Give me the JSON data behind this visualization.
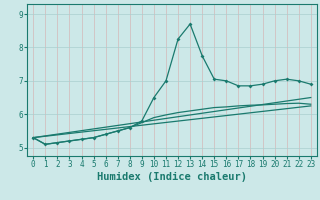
{
  "title": "",
  "xlabel": "Humidex (Indice chaleur)",
  "x": [
    0,
    1,
    2,
    3,
    4,
    5,
    6,
    7,
    8,
    9,
    10,
    11,
    12,
    13,
    14,
    15,
    16,
    17,
    18,
    19,
    20,
    21,
    22,
    23
  ],
  "line1": [
    5.3,
    5.1,
    5.15,
    5.2,
    5.25,
    5.3,
    5.4,
    5.5,
    5.6,
    5.8,
    6.5,
    7.0,
    8.25,
    8.7,
    7.75,
    7.05,
    7.0,
    6.85,
    6.85,
    6.9,
    7.0,
    7.05,
    7.0,
    6.9
  ],
  "line2_x": [
    0,
    23
  ],
  "line2_y": [
    5.3,
    6.5
  ],
  "line3_x": [
    0,
    23
  ],
  "line3_y": [
    5.3,
    6.25
  ],
  "line4": [
    5.3,
    5.1,
    5.15,
    5.2,
    5.25,
    5.3,
    5.4,
    5.5,
    5.6,
    5.75,
    5.9,
    5.98,
    6.05,
    6.1,
    6.15,
    6.2,
    6.22,
    6.25,
    6.27,
    6.28,
    6.3,
    6.32,
    6.33,
    6.3
  ],
  "color_main": "#1a7a6e",
  "color_bg": "#cce8e8",
  "color_grid": "#aacfcf",
  "ylim": [
    4.75,
    9.3
  ],
  "xlim": [
    -0.5,
    23.5
  ],
  "yticks": [
    5,
    6,
    7,
    8,
    9
  ],
  "xticks": [
    0,
    1,
    2,
    3,
    4,
    5,
    6,
    7,
    8,
    9,
    10,
    11,
    12,
    13,
    14,
    15,
    16,
    17,
    18,
    19,
    20,
    21,
    22,
    23
  ],
  "tick_fontsize": 5.5,
  "label_fontsize": 7.5
}
